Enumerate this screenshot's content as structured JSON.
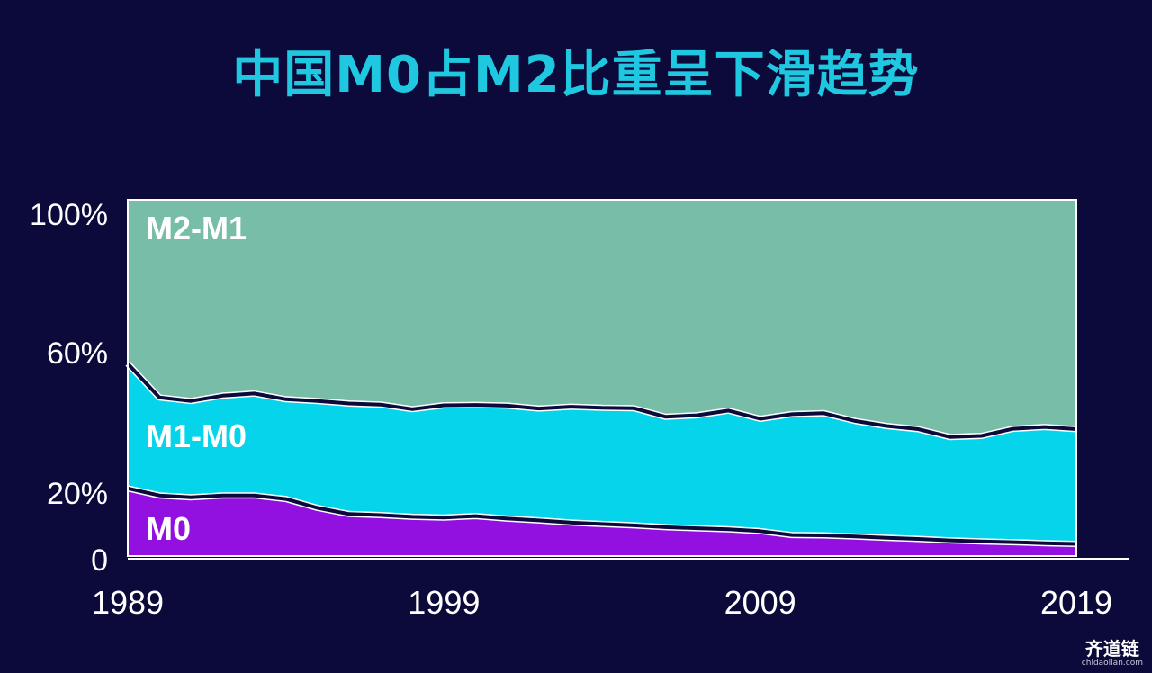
{
  "title": "中国M0占M2比重呈下滑趋势",
  "watermark": {
    "logo_text": "齐道链",
    "url_text": "chidaolian.com"
  },
  "colors": {
    "background": "#0b0a3a",
    "title": "#1fc8e0",
    "m0": "#9210e0",
    "m1_m0": "#05d4ea",
    "m2_m1": "#77bda8",
    "separator": "#0b0a3a",
    "separator_outline": "#ffffff"
  },
  "chart_data": {
    "type": "area",
    "stacked": true,
    "x": [
      1989,
      1990,
      1991,
      1992,
      1993,
      1994,
      1995,
      1996,
      1997,
      1998,
      1999,
      2000,
      2001,
      2002,
      2003,
      2004,
      2005,
      2006,
      2007,
      2008,
      2009,
      2010,
      2011,
      2012,
      2013,
      2014,
      2015,
      2016,
      2017,
      2018,
      2019
    ],
    "series": [
      {
        "name": "M0",
        "values": [
          19.0,
          17.0,
          16.5,
          17.0,
          17.0,
          16.0,
          13.5,
          11.8,
          11.5,
          11.0,
          10.8,
          11.2,
          10.5,
          10.0,
          9.4,
          9.0,
          8.6,
          8.1,
          7.8,
          7.5,
          7.0,
          5.9,
          5.8,
          5.5,
          5.1,
          4.8,
          4.4,
          4.1,
          3.9,
          3.6,
          3.4
        ]
      },
      {
        "name": "M1-M0",
        "values": [
          35.0,
          27.5,
          27.0,
          28.0,
          28.6,
          28.0,
          30.0,
          31.0,
          31.0,
          30.2,
          31.5,
          31.2,
          31.7,
          31.4,
          32.5,
          32.6,
          32.9,
          31.0,
          31.7,
          33.3,
          31.5,
          33.9,
          34.3,
          32.4,
          31.4,
          30.8,
          29.0,
          29.6,
          31.8,
          32.6,
          32.2
        ]
      },
      {
        "name": "M2-M1",
        "values": [
          46.0,
          55.5,
          56.5,
          55.0,
          54.4,
          56.0,
          56.5,
          57.2,
          57.5,
          58.8,
          57.7,
          57.6,
          57.8,
          58.6,
          58.1,
          58.4,
          58.5,
          60.9,
          60.5,
          59.2,
          61.5,
          60.2,
          59.9,
          62.1,
          63.5,
          64.4,
          66.6,
          66.3,
          64.3,
          63.8,
          64.4
        ]
      }
    ],
    "labels": {
      "top": "M2-M1",
      "middle": "M1-M0",
      "bottom": "M0"
    },
    "yticks": [
      "100%",
      "60%",
      "20%",
      "0"
    ],
    "ytick_values": [
      100,
      60,
      20,
      0
    ],
    "xticks": [
      "1989",
      "1999",
      "2009",
      "2019"
    ],
    "xtick_values": [
      1989,
      1999,
      2009,
      2019
    ],
    "ylim": [
      0,
      100
    ],
    "xlim": [
      1989,
      2019
    ],
    "grid": false,
    "legend": "inline-labels"
  }
}
